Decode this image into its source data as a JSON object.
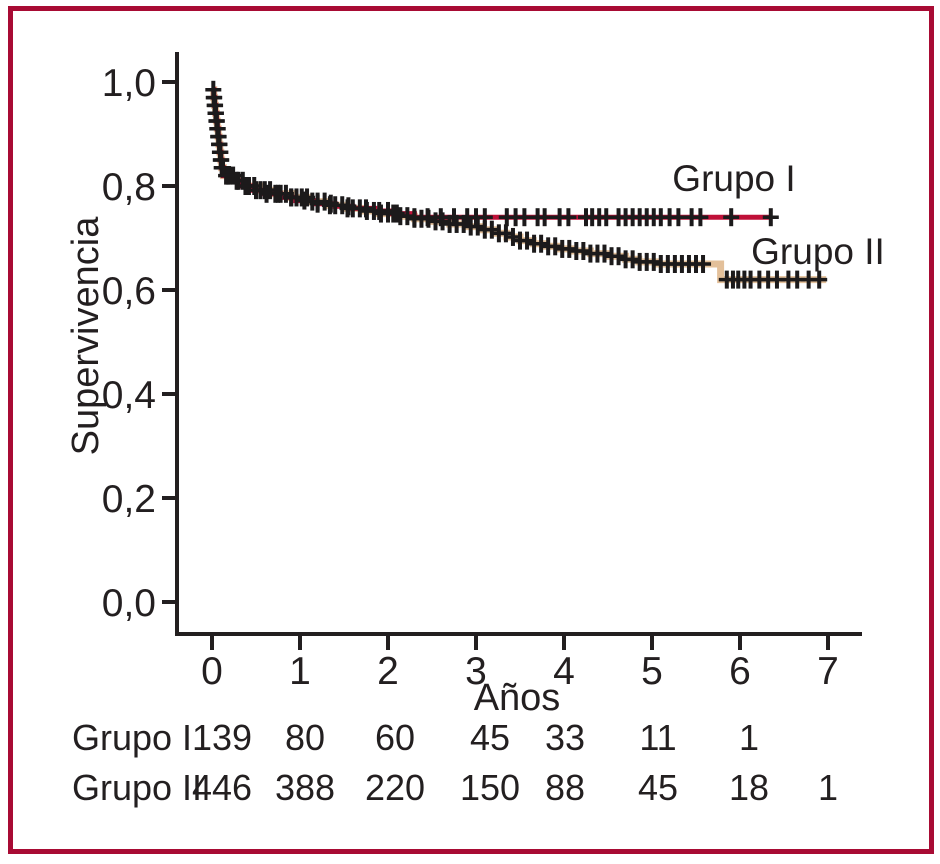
{
  "figure": {
    "border_color": "#a80b34",
    "background_color": "#ffffff",
    "text_color": "#231f20"
  },
  "chart_data": {
    "type": "line",
    "subtype": "kaplan-meier-step-curves",
    "title": "",
    "xlabel": "Años",
    "ylabel": "Supervivencia",
    "xlim": [
      0,
      7
    ],
    "ylim": [
      0.0,
      1.0
    ],
    "grid": false,
    "legend_position": "inline-labels-right-of-curves",
    "axis_color": "#231f20",
    "censor_mark_color": "#1c1a1b",
    "x_tick_labels": [
      "0",
      "1",
      "2",
      "3",
      "4",
      "5",
      "6",
      "7"
    ],
    "y_tick_labels": [
      "1,0",
      "0,8",
      "0,6",
      "0,4",
      "0,2",
      "0,0"
    ],
    "y_tick_values": [
      1.0,
      0.8,
      0.6,
      0.4,
      0.2,
      0.0
    ],
    "series": [
      {
        "name": "Grupo I",
        "color": "#bf1038",
        "end_time": 6.35,
        "steps": [
          [
            0,
            0.985
          ],
          [
            0.02,
            0.97
          ],
          [
            0.03,
            0.955
          ],
          [
            0.04,
            0.94
          ],
          [
            0.05,
            0.925
          ],
          [
            0.06,
            0.91
          ],
          [
            0.07,
            0.895
          ],
          [
            0.08,
            0.88
          ],
          [
            0.09,
            0.865
          ],
          [
            0.1,
            0.85
          ],
          [
            0.11,
            0.835
          ],
          [
            0.13,
            0.82
          ],
          [
            0.22,
            0.81
          ],
          [
            0.32,
            0.8
          ],
          [
            0.45,
            0.792
          ],
          [
            0.6,
            0.785
          ],
          [
            0.78,
            0.778
          ],
          [
            0.95,
            0.772
          ],
          [
            1.15,
            0.766
          ],
          [
            1.4,
            0.761
          ],
          [
            1.6,
            0.757
          ],
          [
            1.85,
            0.752
          ],
          [
            2.05,
            0.747
          ],
          [
            2.3,
            0.74
          ]
        ],
        "censor_times": [
          0.02,
          0.03,
          0.04,
          0.05,
          0.06,
          0.07,
          0.08,
          0.09,
          0.1,
          0.11,
          0.12,
          0.18,
          0.28,
          0.38,
          0.5,
          0.62,
          0.75,
          0.9,
          1.05,
          1.2,
          1.35,
          1.55,
          1.75,
          1.9,
          2.0,
          2.1,
          2.3,
          2.45,
          2.6,
          2.75,
          2.9,
          3.0,
          3.1,
          3.35,
          3.45,
          3.55,
          3.7,
          3.78,
          3.95,
          4.05,
          4.25,
          4.32,
          4.4,
          4.48,
          4.62,
          4.7,
          4.78,
          4.86,
          4.94,
          5.02,
          5.1,
          5.2,
          5.3,
          5.45,
          5.55,
          5.9,
          6.35
        ]
      },
      {
        "name": "Grupo II",
        "color": "#e3c09a",
        "end_time": 6.98,
        "steps": [
          [
            0,
            0.985
          ],
          [
            0.02,
            0.97
          ],
          [
            0.03,
            0.955
          ],
          [
            0.04,
            0.94
          ],
          [
            0.05,
            0.925
          ],
          [
            0.06,
            0.91
          ],
          [
            0.07,
            0.895
          ],
          [
            0.08,
            0.88
          ],
          [
            0.09,
            0.865
          ],
          [
            0.1,
            0.85
          ],
          [
            0.11,
            0.835
          ],
          [
            0.13,
            0.82
          ],
          [
            0.25,
            0.81
          ],
          [
            0.4,
            0.8
          ],
          [
            0.55,
            0.792
          ],
          [
            0.72,
            0.785
          ],
          [
            0.9,
            0.778
          ],
          [
            1.1,
            0.77
          ],
          [
            1.3,
            0.763
          ],
          [
            1.5,
            0.757
          ],
          [
            1.7,
            0.752
          ],
          [
            1.9,
            0.747
          ],
          [
            2.1,
            0.742
          ],
          [
            2.3,
            0.737
          ],
          [
            2.5,
            0.732
          ],
          [
            2.7,
            0.727
          ],
          [
            2.9,
            0.722
          ],
          [
            3.05,
            0.716
          ],
          [
            3.2,
            0.709
          ],
          [
            3.35,
            0.702
          ],
          [
            3.5,
            0.695
          ],
          [
            3.65,
            0.689
          ],
          [
            3.8,
            0.684
          ],
          [
            3.95,
            0.679
          ],
          [
            4.1,
            0.675
          ],
          [
            4.3,
            0.67
          ],
          [
            4.5,
            0.665
          ],
          [
            4.7,
            0.659
          ],
          [
            4.85,
            0.654
          ],
          [
            5.05,
            0.65
          ],
          [
            5.78,
            0.62
          ]
        ],
        "censor_times": [
          0.015,
          0.025,
          0.035,
          0.045,
          0.055,
          0.065,
          0.075,
          0.085,
          0.095,
          0.105,
          0.115,
          0.125,
          0.16,
          0.2,
          0.24,
          0.3,
          0.35,
          0.42,
          0.48,
          0.55,
          0.6,
          0.66,
          0.72,
          0.78,
          0.84,
          0.9,
          0.96,
          1.02,
          1.08,
          1.14,
          1.2,
          1.28,
          1.34,
          1.4,
          1.48,
          1.54,
          1.6,
          1.68,
          1.76,
          1.84,
          1.92,
          2.0,
          2.06,
          2.14,
          2.22,
          2.3,
          2.38,
          2.46,
          2.54,
          2.62,
          2.7,
          2.78,
          2.86,
          2.94,
          3.02,
          3.1,
          3.18,
          3.26,
          3.34,
          3.42,
          3.5,
          3.58,
          3.66,
          3.74,
          3.82,
          3.9,
          3.98,
          4.06,
          4.14,
          4.22,
          4.3,
          4.38,
          4.46,
          4.54,
          4.62,
          4.7,
          4.78,
          4.86,
          4.94,
          5.02,
          5.1,
          5.18,
          5.26,
          5.34,
          5.42,
          5.5,
          5.58,
          5.85,
          5.92,
          5.98,
          6.05,
          6.12,
          6.22,
          6.32,
          6.42,
          6.55,
          6.65,
          6.78,
          6.9
        ]
      }
    ],
    "risk_table": {
      "time_points": [
        0,
        1,
        2,
        3,
        4,
        5,
        6,
        7
      ],
      "rows": [
        {
          "label": "Grupo I",
          "values": [
            "139",
            "80",
            "60",
            "45",
            "33",
            "11",
            "1"
          ]
        },
        {
          "label": "Grupo II",
          "values": [
            "446",
            "388",
            "220",
            "150",
            "88",
            "45",
            "18",
            "1"
          ]
        }
      ]
    }
  }
}
